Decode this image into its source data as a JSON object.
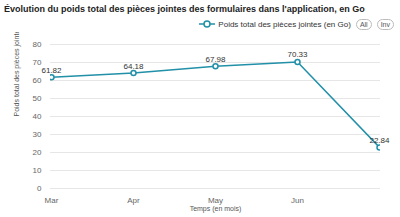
{
  "chart_data": {
    "type": "line",
    "title": "Évolution du poids total des pièces jointes des formulaires dans l'application, en Go",
    "x_label": "Temps (en mois)",
    "y_label": "Poids total des pièces jointes des formulaires",
    "annotations": [
      "All",
      "Inv"
    ],
    "categories": [
      "Mar",
      "Apr",
      "May",
      "Jun",
      null
    ],
    "series": [
      {
        "name": "Poids total des pièces jointes (en Go)",
        "color": "#2190a8",
        "marker": "circle",
        "values": [
          61.82,
          64.18,
          67.98,
          70.33,
          22.84
        ]
      }
    ],
    "ylim": [
      0,
      80
    ],
    "yticks": [
      0,
      10,
      20,
      30,
      40,
      50,
      60,
      70,
      80
    ],
    "grid": true,
    "legend": "top-right",
    "data_labels": true
  }
}
